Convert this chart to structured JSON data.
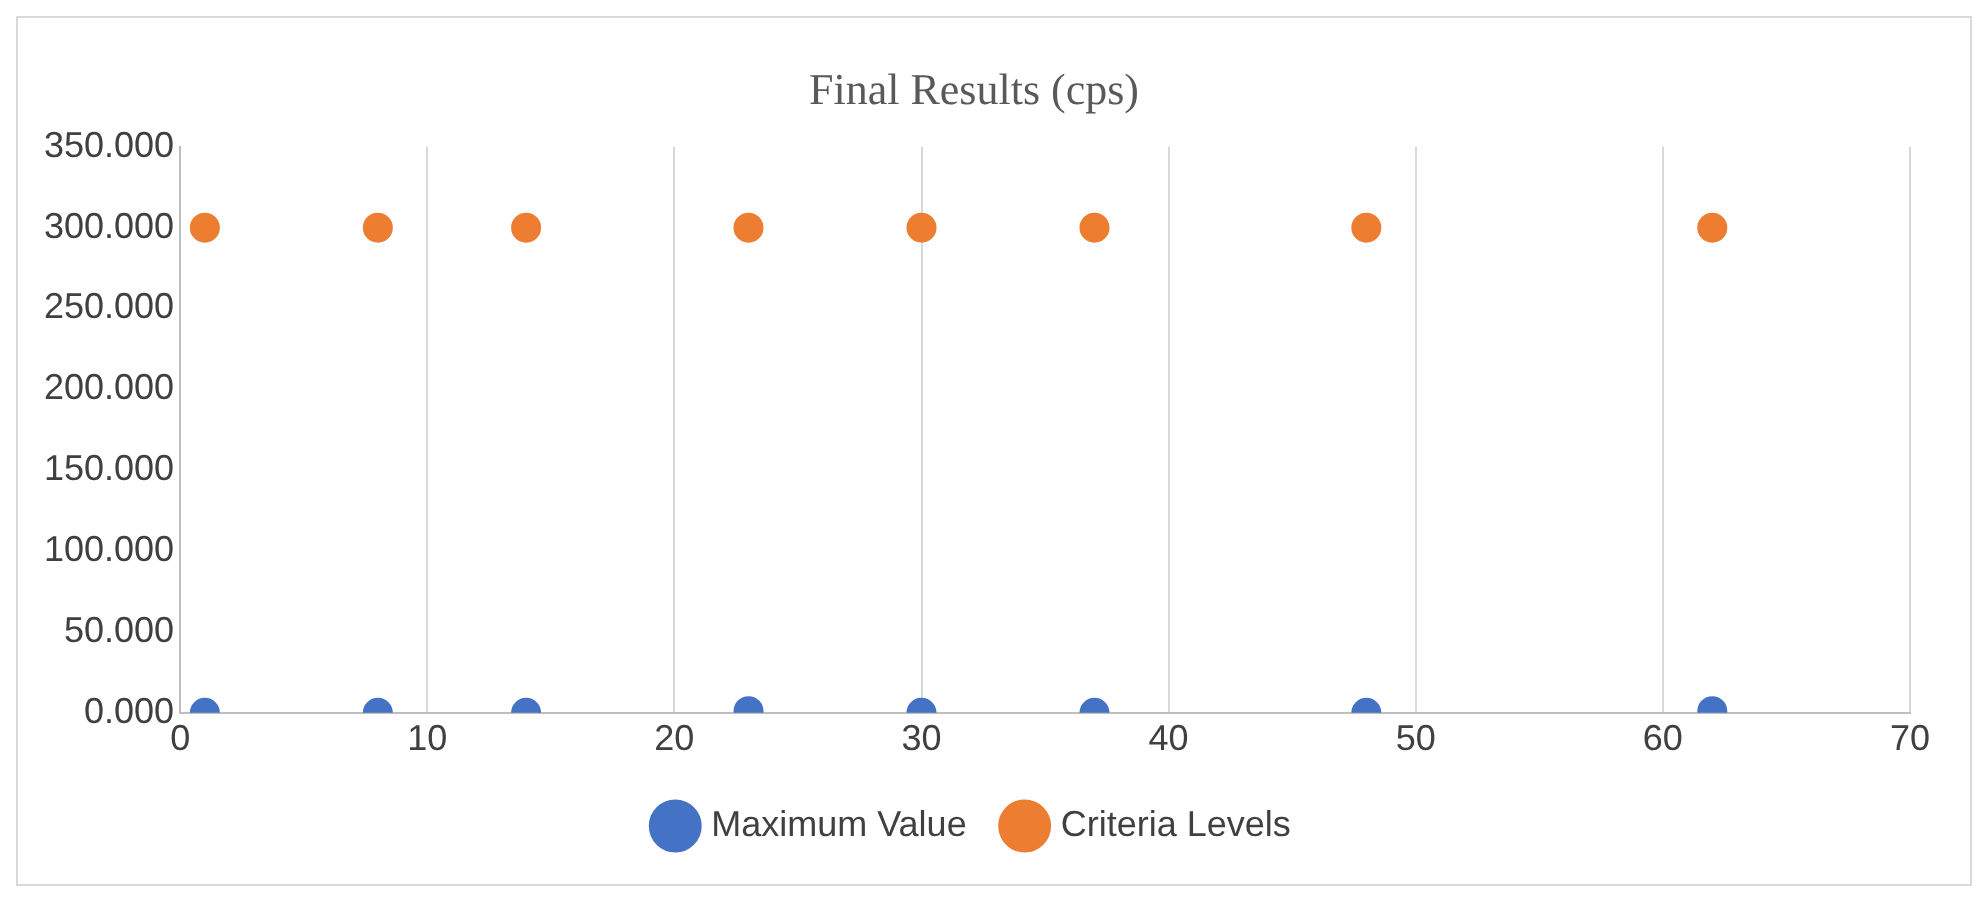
{
  "chart_data": {
    "type": "scatter",
    "title": "Final Results (cps)",
    "x": [
      1,
      8,
      14,
      23,
      30,
      37,
      48,
      62
    ],
    "series": [
      {
        "name": "Maximum Value",
        "color": "#4472c4",
        "values": [
          0,
          0,
          0,
          1,
          0,
          0,
          0,
          1
        ]
      },
      {
        "name": "Criteria Levels",
        "color": "#ed7d31",
        "values": [
          300,
          300,
          300,
          300,
          300,
          300,
          300,
          300
        ]
      }
    ],
    "xlim": [
      0,
      70
    ],
    "xticks": [
      0,
      10,
      20,
      30,
      40,
      50,
      60,
      70
    ],
    "ylim": [
      0,
      350
    ],
    "yticks": [
      {
        "value": 0,
        "label": "0.000"
      },
      {
        "value": 50,
        "label": "50.000"
      },
      {
        "value": 100,
        "label": "100.000"
      },
      {
        "value": 150,
        "label": "150.000"
      },
      {
        "value": 200,
        "label": "200.000"
      },
      {
        "value": 250,
        "label": "250.000"
      },
      {
        "value": 300,
        "label": "300.000"
      },
      {
        "value": 350,
        "label": "350.000"
      }
    ],
    "grid": "x",
    "legend": "bottom",
    "marker": "circle"
  }
}
